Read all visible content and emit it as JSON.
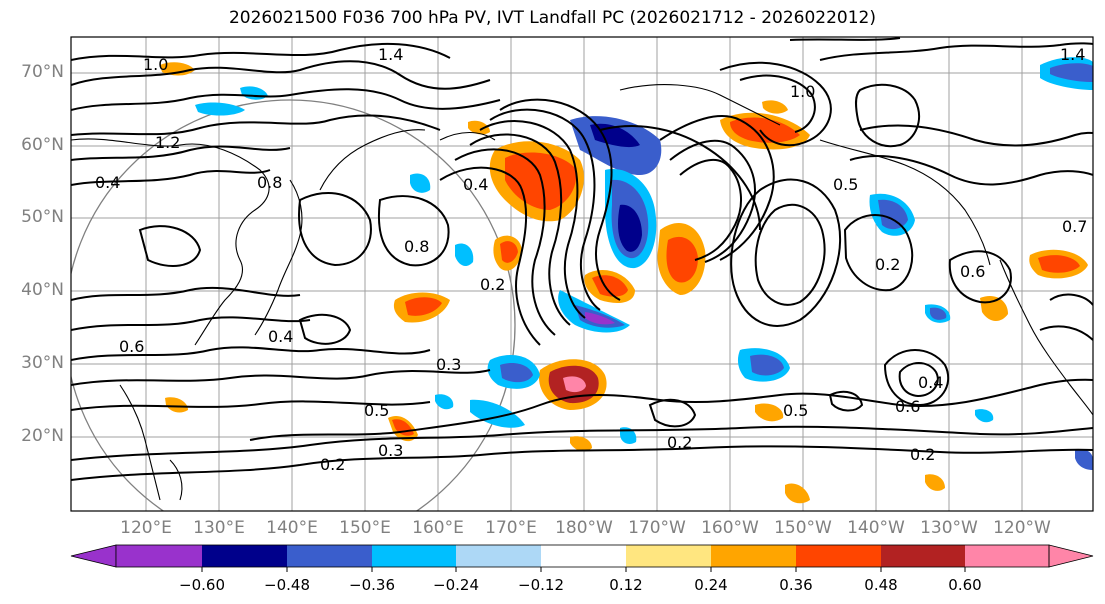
{
  "title": "2026021500 F036 700 hPa PV, IVT Landfall PC (2026021712 - 2026022012)",
  "latitude_labels": [
    "70°N",
    "60°N",
    "50°N",
    "40°N",
    "30°N",
    "20°N"
  ],
  "longitude_labels": [
    "120°E",
    "130°E",
    "140°E",
    "150°E",
    "160°E",
    "170°E",
    "180°W",
    "170°W",
    "160°W",
    "150°W",
    "140°W",
    "130°W",
    "120°W"
  ],
  "contour_labels": [
    "1.4",
    "1.0",
    "0.8",
    "0.4",
    "0.5",
    "0.2",
    "0.3",
    "0.6",
    "1.2",
    "0.7"
  ],
  "colorbar": {
    "ticks": [
      "−0.60",
      "−0.48",
      "−0.36",
      "−0.24",
      "−0.12",
      "0.12",
      "0.24",
      "0.36",
      "0.48",
      "0.60"
    ],
    "colors": [
      "#9932CC",
      "#00008B",
      "#3A5ECC",
      "#00BFFF",
      "#ADD8F6",
      "#FFFFFF",
      "#FFE680",
      "#FFA500",
      "#FF4500",
      "#B22222",
      "#FF85A8"
    ]
  }
}
